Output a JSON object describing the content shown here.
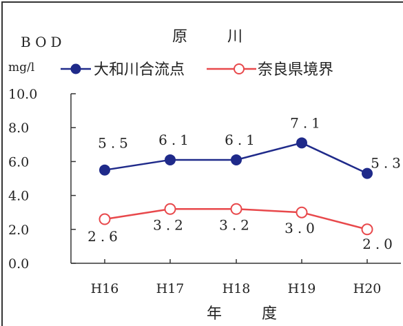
{
  "chart_data": {
    "type": "line",
    "title": "原　川",
    "ylabel": "BOD",
    "unit": "mg/l",
    "xlabel": "年　度",
    "categories": [
      "H16",
      "H17",
      "H18",
      "H19",
      "H20"
    ],
    "ylim": [
      0,
      10
    ],
    "y_ticks": [
      "10.0",
      "8.0",
      "6.0",
      "4.0",
      "2.0",
      "0.0"
    ],
    "grid": false,
    "legend_position": "top",
    "series": [
      {
        "name": "大和川合流点",
        "color": "#1f2a8a",
        "marker": "filled-circle",
        "values": [
          5.5,
          6.1,
          6.1,
          7.1,
          5.3
        ],
        "labels": [
          "5.5",
          "6.1",
          "6.1",
          "7.1",
          "5.3"
        ]
      },
      {
        "name": "奈良県境界",
        "color": "#e8484b",
        "marker": "open-circle",
        "values": [
          2.6,
          3.2,
          3.2,
          3.0,
          2.0
        ],
        "labels": [
          "2.6",
          "3.2",
          "3.2",
          "3.0",
          "2.0"
        ]
      }
    ]
  }
}
